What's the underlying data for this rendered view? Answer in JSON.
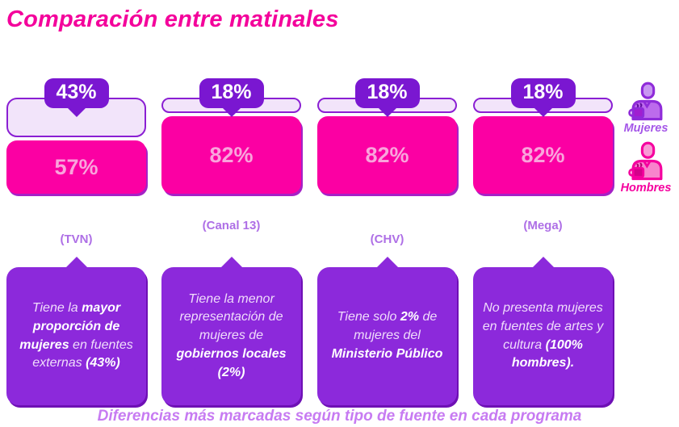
{
  "title": "Comparación entre matinales",
  "caption": "Diferencias más marcadas según tipo de fuente en cada programa",
  "legend": {
    "women_label": "Mujeres",
    "men_label": "Hombres"
  },
  "colors": {
    "title_pink": "#F4009B",
    "bar_pink": "#FB00A3",
    "bar_pink_text": "#F9A4DC",
    "pink_shadow": "#A521C6",
    "badge_purple": "#7A17D1",
    "lavender": "#F2E4FA",
    "lavender_border": "#8A1FD3",
    "note_purple": "#8C29DB",
    "note_shadow": "#6E10B5",
    "note_text": "#F0DCFB",
    "channel_label": "#AE6FE6",
    "caption_purple": "#C77BF2",
    "mujeres_label": "#A558E8",
    "hombres_label": "#F5009E"
  },
  "chart_data": {
    "type": "bar",
    "stacked": true,
    "orientation": "vertical",
    "title": "Comparación entre matinales",
    "categories": [
      "(TVN)",
      "(Canal 13)",
      "(CHV)",
      "(Mega)"
    ],
    "series": [
      {
        "name": "Mujeres",
        "values": [
          43,
          18,
          18,
          18
        ],
        "color": "#F2E4FA"
      },
      {
        "name": "Hombres",
        "values": [
          57,
          82,
          82,
          82
        ],
        "color": "#FB00A3"
      }
    ],
    "value_suffix": "%",
    "ylim": [
      0,
      100
    ],
    "xlabel": "",
    "ylabel": "",
    "grid": false,
    "legend_position": "right",
    "annotations": [
      "Tiene la mayor proporción de mujeres en fuentes externas (43%)",
      "Tiene la menor representación de mujeres de gobiernos locales (2%)",
      "Tiene solo 2% de mujeres del Ministerio Público",
      "No presenta mujeres en fuentes de artes y cultura (100% hombres)."
    ]
  },
  "bars": [
    {
      "badge": "43%",
      "men_label": "57%",
      "channel": "(TVN)",
      "note": "Tiene la **mayor proporción de mujeres** en fuentes externas **(43%)**"
    },
    {
      "badge": "18%",
      "men_label": "82%",
      "channel": "(Canal 13)",
      "note": "Tiene la menor representación de mujeres de **gobiernos locales (2%)**"
    },
    {
      "badge": "18%",
      "men_label": "82%",
      "channel": "(CHV)",
      "note": "Tiene solo **2%** de mujeres del **Ministerio Público**"
    },
    {
      "badge": "18%",
      "men_label": "82%",
      "channel": "(Mega)",
      "note": "No presenta mujeres en fuentes de artes y cultura **(100% hombres).**"
    }
  ]
}
